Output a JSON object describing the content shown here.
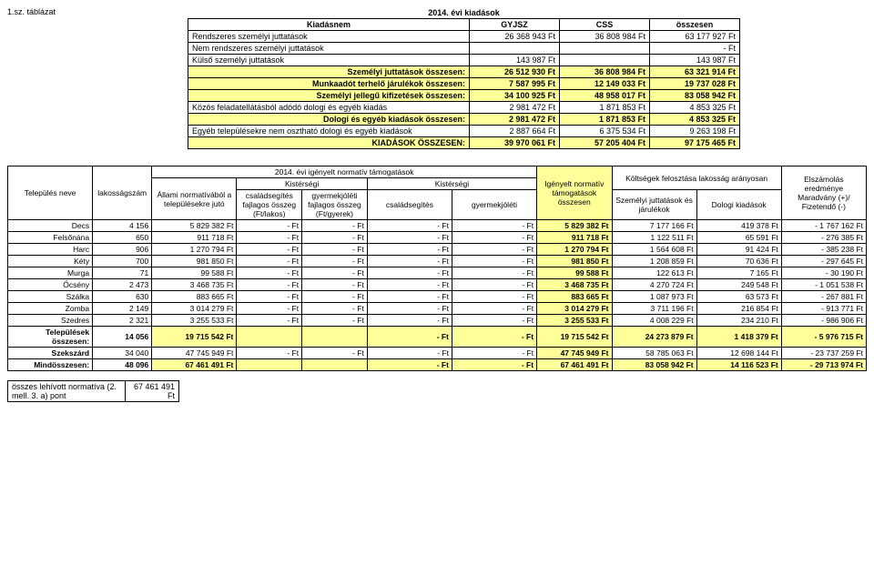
{
  "title_year": "2014. évi kiadások",
  "t1_label": "1.sz. táblázat",
  "t1": {
    "headers": [
      "Kiadásnem",
      "GYJSZ",
      "CSS",
      "összesen"
    ],
    "rows": [
      {
        "label": "Rendszeres személyi juttatások",
        "c1": "26 368 943 Ft",
        "c2": "36 808 984 Ft",
        "c3": "63 177 927 Ft",
        "sum": false,
        "alignLabel": "left"
      },
      {
        "label": "Nem rendszeres személyi juttatások",
        "c1": "",
        "c2": "",
        "c3": "-   Ft",
        "sum": false,
        "alignLabel": "left"
      },
      {
        "label": "Külső személyi juttatások",
        "c1": "143 987 Ft",
        "c2": "",
        "c3": "143 987 Ft",
        "sum": false,
        "alignLabel": "left"
      },
      {
        "label": "Személyi juttatások összesen:",
        "c1": "26 512 930 Ft",
        "c2": "36 808 984 Ft",
        "c3": "63 321 914 Ft",
        "sum": true,
        "alignLabel": "right"
      },
      {
        "label": "Munkaadót terhelő járulékok összesen:",
        "c1": "7 587 995 Ft",
        "c2": "12 149 033 Ft",
        "c3": "19 737 028 Ft",
        "sum": true,
        "alignLabel": "right"
      },
      {
        "label": "Személyi jellegű kifizetések összesen:",
        "c1": "34 100 925 Ft",
        "c2": "48 958 017 Ft",
        "c3": "83 058 942 Ft",
        "sum": true,
        "alignLabel": "right"
      },
      {
        "label": "Közös feladatellátásból adódó dologi és egyéb kiadás",
        "c1": "2 981 472 Ft",
        "c2": "1 871 853 Ft",
        "c3": "4 853 325 Ft",
        "sum": false,
        "alignLabel": "left"
      },
      {
        "label": "Dologi  és egyéb  kiadások összesen:",
        "c1": "2 981 472 Ft",
        "c2": "1 871 853 Ft",
        "c3": "4 853 325 Ft",
        "sum": true,
        "alignLabel": "right"
      },
      {
        "label": "Egyéb településekre nem osztható dologi és egyéb kiadások",
        "c1": "2 887 664 Ft",
        "c2": "6 375 534 Ft",
        "c3": "9 263 198 Ft",
        "sum": false,
        "alignLabel": "left"
      },
      {
        "label": "KIADÁSOK ÖSSZESEN:",
        "c1": "39 970 061 Ft",
        "c2": "57 205 404 Ft",
        "c3": "97 175 465 Ft",
        "sum": true,
        "alignLabel": "right"
      }
    ]
  },
  "t2": {
    "h": {
      "telepules": "Település neve",
      "lakossag": "lakosságszám",
      "igenyelt_title": "2014. évi igényelt normatív támogatások",
      "allami": "Állami normatívából a településekre jutó",
      "kistersegi": "Kistérségi",
      "kistersegi2": "Kistérségi",
      "csaladsegito": "családsegítés fajlagos összeg (Ft/lakos)",
      "gyermekjole": "gyermekjóléti fajlagos összeg (Ft/gyerek)",
      "csaladsegites": "családsegítés",
      "gyermekjoleti": "gyermekjóléti",
      "igenyelt": "Igényelt normatív támogatások összesen",
      "koltsegek": "Költségek felosztása lakosság arányosan",
      "szemelyi": "Személyi juttatások és járulékok",
      "dologi": "Dologi kiadások",
      "elszamolas": "Elszámolás eredménye Maradvány (+)/ Fizetendő (-)"
    },
    "rows": [
      {
        "n": "Decs",
        "l": "4 156",
        "a": "5 829 382 Ft",
        "k1": "-   Ft",
        "k2": "-   Ft",
        "cs": "-   Ft",
        "gy": "-   Ft",
        "ig": "5 829 382 Ft",
        "sz": "7 177 166 Ft",
        "dl": "419 378 Ft",
        "el": "-   1 767 162 Ft"
      },
      {
        "n": "Felsőnána",
        "l": "650",
        "a": "911 718 Ft",
        "k1": "-   Ft",
        "k2": "-   Ft",
        "cs": "-   Ft",
        "gy": "-   Ft",
        "ig": "911 718 Ft",
        "sz": "1 122 511 Ft",
        "dl": "65 591 Ft",
        "el": "-      276 385 Ft"
      },
      {
        "n": "Harc",
        "l": "906",
        "a": "1 270 794 Ft",
        "k1": "-   Ft",
        "k2": "-   Ft",
        "cs": "-   Ft",
        "gy": "-   Ft",
        "ig": "1 270 794 Ft",
        "sz": "1 564 608 Ft",
        "dl": "91 424 Ft",
        "el": "-      385 238 Ft"
      },
      {
        "n": "Kéty",
        "l": "700",
        "a": "981 850 Ft",
        "k1": "-   Ft",
        "k2": "-   Ft",
        "cs": "-   Ft",
        "gy": "-   Ft",
        "ig": "981 850 Ft",
        "sz": "1 208 859 Ft",
        "dl": "70 636 Ft",
        "el": "-      297 645 Ft"
      },
      {
        "n": "Murga",
        "l": "71",
        "a": "99 588 Ft",
        "k1": "-   Ft",
        "k2": "-   Ft",
        "cs": "-   Ft",
        "gy": "-   Ft",
        "ig": "99 588 Ft",
        "sz": "122 613 Ft",
        "dl": "7 165 Ft",
        "el": "-        30 190 Ft"
      },
      {
        "n": "Őcsény",
        "l": "2 473",
        "a": "3 468 735 Ft",
        "k1": "-   Ft",
        "k2": "-   Ft",
        "cs": "-   Ft",
        "gy": "-   Ft",
        "ig": "3 468 735 Ft",
        "sz": "4 270 724 Ft",
        "dl": "249 548 Ft",
        "el": "-   1 051 538 Ft"
      },
      {
        "n": "Szálka",
        "l": "630",
        "a": "883 665 Ft",
        "k1": "-   Ft",
        "k2": "-   Ft",
        "cs": "-   Ft",
        "gy": "-   Ft",
        "ig": "883 665 Ft",
        "sz": "1 087 973 Ft",
        "dl": "63 573 Ft",
        "el": "-      267 881 Ft"
      },
      {
        "n": "Zomba",
        "l": "2 149",
        "a": "3 014 279 Ft",
        "k1": "-   Ft",
        "k2": "-   Ft",
        "cs": "-   Ft",
        "gy": "-   Ft",
        "ig": "3 014 279 Ft",
        "sz": "3 711 196 Ft",
        "dl": "216 854 Ft",
        "el": "-      913 771 Ft"
      },
      {
        "n": "Szedres",
        "l": "2 321",
        "a": "3 255 533 Ft",
        "k1": "-   Ft",
        "k2": "-   Ft",
        "cs": "-   Ft",
        "gy": "-   Ft",
        "ig": "3 255 533 Ft",
        "sz": "4 008 229 Ft",
        "dl": "234 210 Ft",
        "el": "-      986 906 Ft"
      }
    ],
    "sumrows": [
      {
        "n": "Települések összesen:",
        "l": "14 056",
        "a": "19 715 542 Ft",
        "k1": "",
        "k2": "",
        "cs": "-   Ft",
        "gy": "-   Ft",
        "ig": "19 715 542 Ft",
        "sz": "24 273 879 Ft",
        "dl": "1 418 379 Ft",
        "el": "-   5 976 715 Ft"
      },
      {
        "n": "Szekszárd",
        "l": "34 040",
        "a": "47 745 949 Ft",
        "k1": "-   Ft",
        "k2": "-   Ft",
        "cs": "-   Ft",
        "gy": "-   Ft",
        "ig": "47 745 949 Ft",
        "sz": "58 785 063 Ft",
        "dl": "12 698 144 Ft",
        "el": "- 23 737 259 Ft"
      },
      {
        "n": "Mindösszesen:",
        "l": "48 096",
        "a": "67 461 491 Ft",
        "k1": "",
        "k2": "",
        "cs": "-   Ft",
        "gy": "-   Ft",
        "ig": "67 461 491 Ft",
        "sz": "83 058 942 Ft",
        "dl": "14 116 523 Ft",
        "el": "- 29 713 974 Ft"
      }
    ]
  },
  "t3": {
    "label": "összes lehívott normatíva (2. mell. 3. a) pont",
    "value": "67 461 491 Ft"
  }
}
